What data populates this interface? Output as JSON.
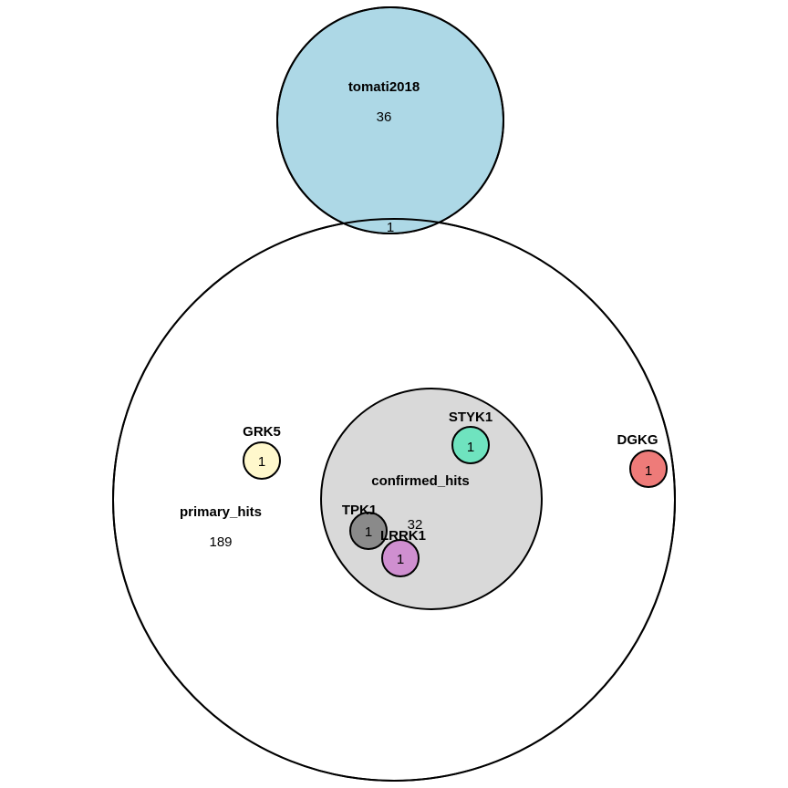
{
  "sets": {
    "primary_hits": {
      "label": "primary_hits",
      "count": "189",
      "fill": "#ffffff"
    },
    "tomati2018": {
      "label": "tomati2018",
      "count": "36",
      "fill": "#add8e6"
    },
    "confirmed_hits": {
      "label": "confirmed_hits",
      "count": "32",
      "fill": "#d9d9d9"
    },
    "GRK5": {
      "label": "GRK5",
      "count": "1",
      "fill": "#fff8cc"
    },
    "STYK1": {
      "label": "STYK1",
      "count": "1",
      "fill": "#6fe3bf"
    },
    "DGKG": {
      "label": "DGKG",
      "count": "1",
      "fill": "#ee7b79"
    },
    "TPK1": {
      "label": "TPK1",
      "count": "1",
      "fill": "#8a8a8a"
    },
    "LRRK1": {
      "label": "LRRK1",
      "count": "1",
      "fill": "#cf8fd0"
    }
  },
  "overlap": {
    "sets": [
      "primary_hits",
      "tomati2018"
    ],
    "count": "1"
  },
  "outline_color": "#000000"
}
